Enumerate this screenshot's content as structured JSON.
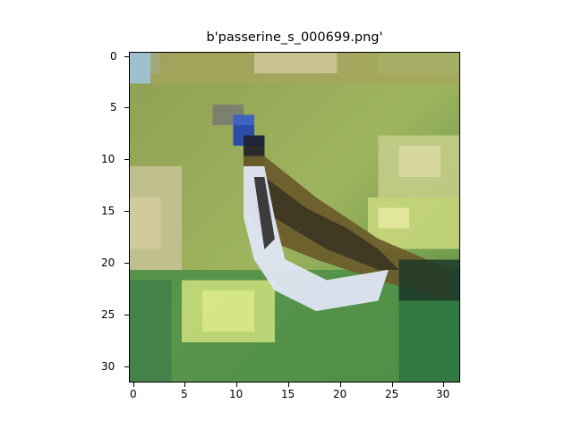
{
  "title": "b'passerine_s_000699.png'",
  "axes": {
    "y_ticks": [
      "0",
      "5",
      "10",
      "15",
      "20",
      "25",
      "30"
    ],
    "x_ticks": [
      "0",
      "5",
      "10",
      "15",
      "20",
      "25",
      "30"
    ]
  }
}
